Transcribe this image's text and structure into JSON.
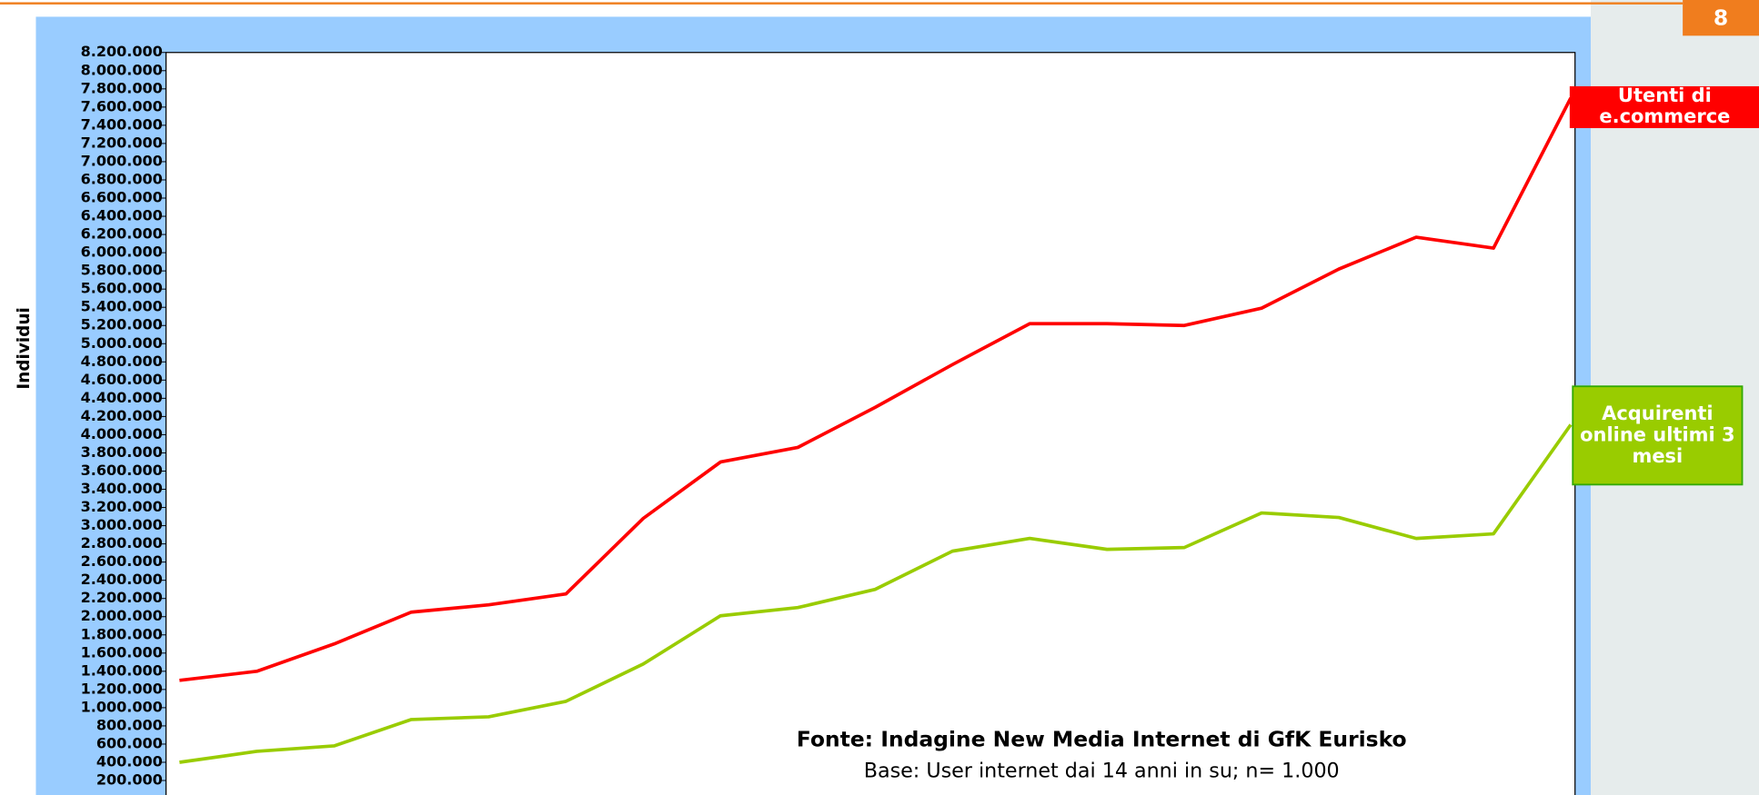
{
  "page_number": "8",
  "chart_data": {
    "type": "line",
    "ylabel": "Individui",
    "categories": [
      null,
      null,
      null,
      null,
      null,
      null,
      null,
      null,
      null,
      null,
      null,
      null,
      null,
      null,
      null,
      null,
      null,
      null,
      null
    ],
    "series": [
      {
        "name": "Utenti di e.commerce",
        "color": "#ff0000",
        "values": [
          1300000,
          1400000,
          1700000,
          2050000,
          2130000,
          2250000,
          3080000,
          3700000,
          3860000,
          4300000,
          4770000,
          5220000,
          5220000,
          5200000,
          5390000,
          5820000,
          6170000,
          6050000,
          7700000
        ]
      },
      {
        "name": "Acquirenti online ultimi 3 mesi",
        "color": "#99cc00",
        "values": [
          400000,
          520000,
          580000,
          870000,
          900000,
          1070000,
          1480000,
          2010000,
          2100000,
          2300000,
          2720000,
          2860000,
          2740000,
          2760000,
          3140000,
          3090000,
          2860000,
          2910000,
          4110000
        ]
      }
    ],
    "ylim": [
      0,
      8200000
    ],
    "yticks": [
      {
        "value": 200000,
        "label": "200.000"
      },
      {
        "value": 400000,
        "label": "400.000"
      },
      {
        "value": 600000,
        "label": "600.000"
      },
      {
        "value": 800000,
        "label": "800.000"
      },
      {
        "value": 1000000,
        "label": "1.000.000"
      },
      {
        "value": 1200000,
        "label": "1.200.000"
      },
      {
        "value": 1400000,
        "label": "1.400.000"
      },
      {
        "value": 1600000,
        "label": "1.600.000"
      },
      {
        "value": 1800000,
        "label": "1.800.000"
      },
      {
        "value": 2000000,
        "label": "2.000.000"
      },
      {
        "value": 2200000,
        "label": "2.200.000"
      },
      {
        "value": 2400000,
        "label": "2.400.000"
      },
      {
        "value": 2600000,
        "label": "2.600.000"
      },
      {
        "value": 2800000,
        "label": "2.800.000"
      },
      {
        "value": 3000000,
        "label": "3.000.000"
      },
      {
        "value": 3200000,
        "label": "3.200.000"
      },
      {
        "value": 3400000,
        "label": "3.400.000"
      },
      {
        "value": 3600000,
        "label": "3.600.000"
      },
      {
        "value": 3800000,
        "label": "3.800.000"
      },
      {
        "value": 4000000,
        "label": "4.000.000"
      },
      {
        "value": 4200000,
        "label": "4.200.000"
      },
      {
        "value": 4400000,
        "label": "4.400.000"
      },
      {
        "value": 4600000,
        "label": "4.600.000"
      },
      {
        "value": 4800000,
        "label": "4.800.000"
      },
      {
        "value": 5000000,
        "label": "5.000.000"
      },
      {
        "value": 5200000,
        "label": "5.200.000"
      },
      {
        "value": 5400000,
        "label": "5.400.000"
      },
      {
        "value": 5600000,
        "label": "5.600.000"
      },
      {
        "value": 5800000,
        "label": "5.800.000"
      },
      {
        "value": 6000000,
        "label": "6.000.000"
      },
      {
        "value": 6200000,
        "label": "6.200.000"
      },
      {
        "value": 6400000,
        "label": "6.400.000"
      },
      {
        "value": 6600000,
        "label": "6.600.000"
      },
      {
        "value": 6800000,
        "label": "6.800.000"
      },
      {
        "value": 7000000,
        "label": "7.000.000"
      },
      {
        "value": 7200000,
        "label": "7.200.000"
      },
      {
        "value": 7400000,
        "label": "7.400.000"
      },
      {
        "value": 7600000,
        "label": "7.600.000"
      },
      {
        "value": 7800000,
        "label": "7.800.000"
      },
      {
        "value": 8000000,
        "label": "8.000.000"
      },
      {
        "value": 8200000,
        "label": "8.200.000"
      }
    ],
    "annotations": [
      "Fonte: Indagine New Media Internet di GfK Eurisko",
      "Base: User internet dai 14 anni in su; n= 1.000"
    ]
  }
}
